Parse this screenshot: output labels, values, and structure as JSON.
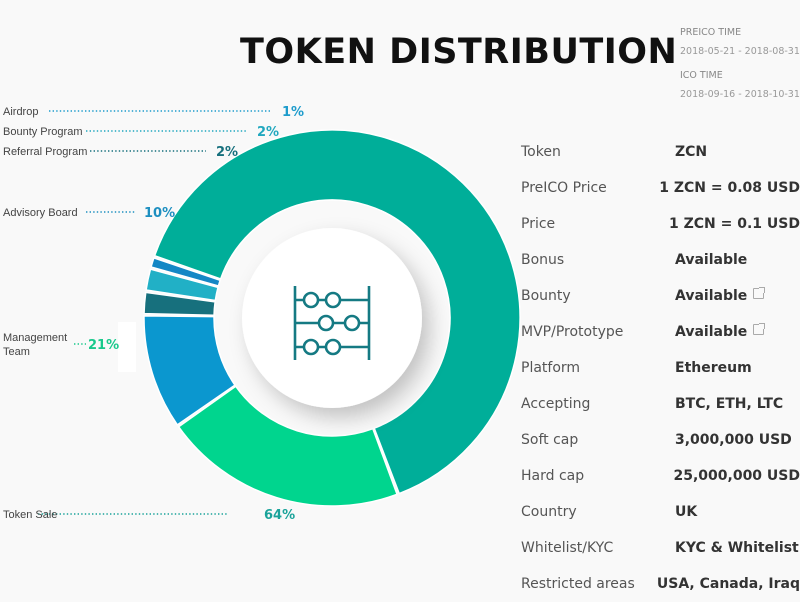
{
  "header": {
    "title": "TOKEN DISTRIBUTION"
  },
  "timing": {
    "preico_label": "PREICO TIME",
    "preico_dates": "2018-05-21 - 2018-08-31",
    "ico_label": "ICO TIME",
    "ico_dates": "2018-09-16 - 2018-10-31"
  },
  "center_icon": "abacus-icon",
  "chart_data": {
    "type": "pie",
    "title": "TOKEN DISTRIBUTION",
    "categories": [
      "Token Sale",
      "Management Team",
      "Advisory Board",
      "Referral Program",
      "Bounty Program",
      "Airdrop"
    ],
    "values": [
      64,
      21,
      10,
      2,
      2,
      1
    ],
    "value_labels": [
      "64%",
      "21%",
      "10%",
      "2%",
      "2%",
      "1%"
    ],
    "display_labels": [
      "Token Sale",
      "Management\nTeam",
      "Advisory Board",
      "Referral Program",
      "Bounty Program",
      "Airdrop"
    ],
    "colors": [
      "#00ae99",
      "#00d58e",
      "#0b97cf",
      "#17707d",
      "#21b0c6",
      "#1487c5"
    ],
    "label_colors": [
      "#1aa39a",
      "#19c98c",
      "#1d8fc0",
      "#17707d",
      "#21a8bf",
      "#1e9ccc"
    ]
  },
  "details": {
    "rows": [
      {
        "key": "Token",
        "value": "ZCN",
        "link": false
      },
      {
        "key": "PreICO Price",
        "value": "1 ZCN = 0.08 USD",
        "link": false
      },
      {
        "key": "Price",
        "value": "1 ZCN = 0.1 USD",
        "link": false
      },
      {
        "key": "Bonus",
        "value": "Available",
        "link": false
      },
      {
        "key": "Bounty",
        "value": "Available",
        "link": true
      },
      {
        "key": "MVP/Prototype",
        "value": "Available",
        "link": true
      },
      {
        "key": "Platform",
        "value": "Ethereum",
        "link": false
      },
      {
        "key": "Accepting",
        "value": "BTC, ETH, LTC",
        "link": false
      },
      {
        "key": "Soft cap",
        "value": "3,000,000 USD",
        "link": false
      },
      {
        "key": "Hard cap",
        "value": "25,000,000 USD",
        "link": false
      },
      {
        "key": "Country",
        "value": "UK",
        "link": false
      },
      {
        "key": "Whitelist/KYC",
        "value": "KYC & Whitelist",
        "link": false
      },
      {
        "key": "Restricted areas",
        "value": "USA, Canada, Iraq",
        "link": false
      }
    ]
  }
}
